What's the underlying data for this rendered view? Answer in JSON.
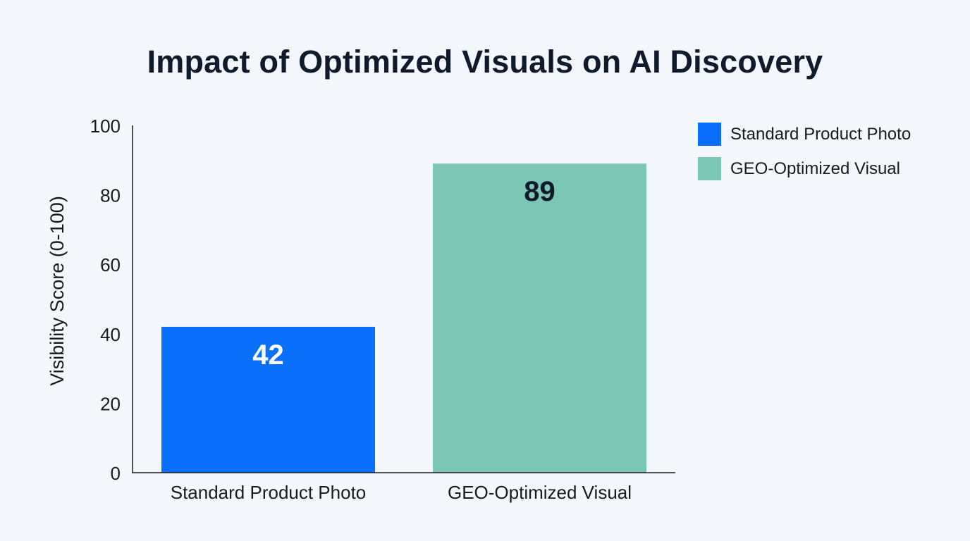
{
  "chart_data": {
    "type": "bar",
    "title": "Impact of Optimized Visuals on AI Discovery",
    "xlabel": "",
    "ylabel": "Visibility Score (0-100)",
    "ylim": [
      0,
      100
    ],
    "yticks": [
      0,
      20,
      40,
      60,
      80,
      100
    ],
    "categories": [
      "Standard Product Photo",
      "GEO-Optimized Visual"
    ],
    "values": [
      42,
      89
    ],
    "data_labels": [
      "42",
      "89"
    ],
    "colors": [
      "#0a6ffb",
      "#7cc6b5"
    ],
    "data_label_colors": [
      "#ffffff",
      "#111a2b"
    ],
    "grid": false,
    "legend": {
      "placement": "right",
      "entries": [
        "Standard Product Photo",
        "GEO-Optimized Visual"
      ]
    }
  }
}
